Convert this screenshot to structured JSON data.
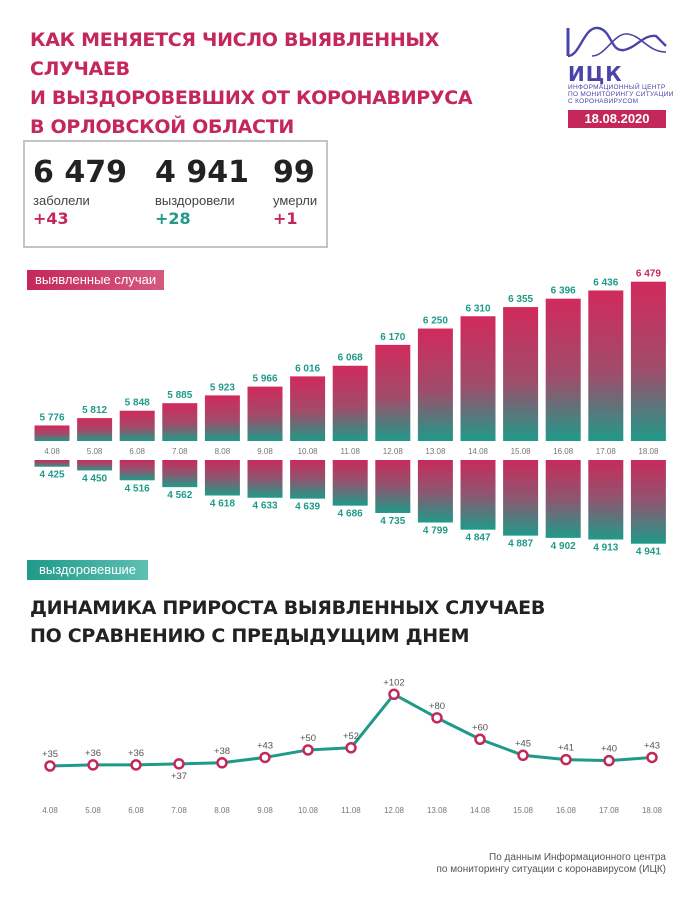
{
  "header": {
    "title_lines": [
      "Как меняется число выявленных случаев",
      "и выздоровевших от коронавируса",
      "в Орловской области"
    ],
    "date": "18.08.2020"
  },
  "logo": {
    "word": "ИЦК",
    "sub_lines": [
      "Информационный центр",
      "по мониторингу ситуации",
      "с коронавирусом"
    ],
    "colors": {
      "purple": "#4a44a8"
    }
  },
  "stats": [
    {
      "value": "6 479",
      "label": "заболели",
      "delta": "+43"
    },
    {
      "value": "4 941",
      "label": "выздоровели",
      "delta": "+28"
    },
    {
      "value": "99",
      "label": "умерли",
      "delta": "+1"
    }
  ],
  "labels": {
    "cases": "выявленные случаи",
    "recovered": "выздоровевшие"
  },
  "section2": {
    "title_lines": [
      "Динамика прироста выявленных случаев",
      "по сравнению с предыдущим днем"
    ]
  },
  "source": {
    "lines": [
      "По данным Информационного центра",
      "по мониторингу ситуации с коронавирусом (ИЦК)"
    ]
  },
  "colors": {
    "accent": "#c4285a",
    "teal": "#1f9a89"
  },
  "chart_data": [
    {
      "type": "bar",
      "categories": [
        "4.08",
        "5.08",
        "6.08",
        "7.08",
        "8.08",
        "9.08",
        "10.08",
        "11.08",
        "12.08",
        "13.08",
        "14.08",
        "15.08",
        "16.08",
        "17.08",
        "18.08"
      ],
      "series": [
        {
          "name": "выявленные случаи",
          "values": [
            5776,
            5812,
            5848,
            5885,
            5923,
            5966,
            6016,
            6068,
            6170,
            6250,
            6310,
            6355,
            6396,
            6436,
            6479
          ],
          "labels": [
            "5 776",
            "5 812",
            "5 848",
            "5 885",
            "5 923",
            "5 966",
            "6 016",
            "6 068",
            "6 170",
            "6 250",
            "6 310",
            "6 355",
            "6 396",
            "6 436",
            "6 479"
          ]
        },
        {
          "name": "выздоровевшие",
          "values": [
            4425,
            4450,
            4516,
            4562,
            4618,
            4633,
            4639,
            4686,
            4735,
            4799,
            4847,
            4887,
            4902,
            4913,
            4941
          ],
          "labels": [
            "4 425",
            "4 450",
            "4 516",
            "4 562",
            "4 618",
            "4 633",
            "4 639",
            "4 686",
            "4 735",
            "4 799",
            "4 847",
            "4 887",
            "4 902",
            "4 913",
            "4 941"
          ]
        }
      ]
    },
    {
      "type": "line",
      "x": [
        "4.08",
        "5.08",
        "6.08",
        "7.08",
        "8.08",
        "9.08",
        "10.08",
        "11.08",
        "12.08",
        "13.08",
        "14.08",
        "15.08",
        "16.08",
        "17.08",
        "18.08"
      ],
      "values": [
        35,
        36,
        36,
        37,
        38,
        43,
        50,
        52,
        102,
        80,
        60,
        45,
        41,
        40,
        43
      ],
      "labels": [
        "+35",
        "+36",
        "+36",
        "+37",
        "+38",
        "+43",
        "+50",
        "+52",
        "+102",
        "+80",
        "+60",
        "+45",
        "+41",
        "+40",
        "+43"
      ]
    }
  ]
}
